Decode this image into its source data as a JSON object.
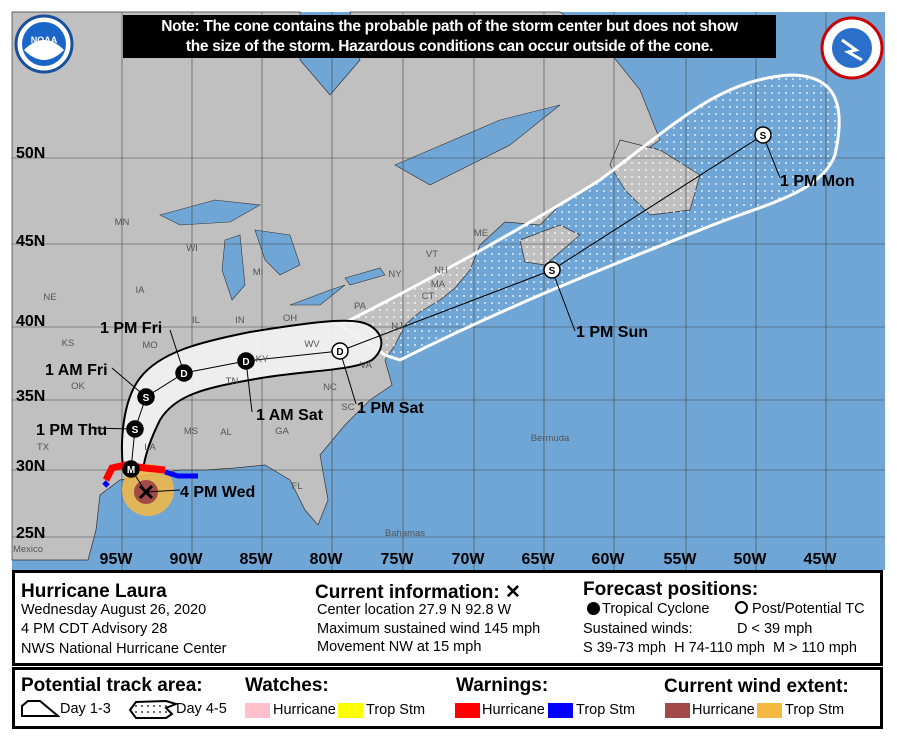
{
  "note": {
    "line1": "Note: The cone contains the probable path of the storm center but does not show",
    "line2": "the size of the storm. Hazardous conditions can occur outside of the cone."
  },
  "logos": {
    "left": "NOAA",
    "right": "NATIONAL WEATHER SERVICE"
  },
  "map": {
    "lat_labels": [
      "50N",
      "45N",
      "40N",
      "35N",
      "30N",
      "25N"
    ],
    "lon_labels": [
      "95W",
      "90W",
      "85W",
      "80W",
      "75W",
      "70W",
      "65W",
      "60W",
      "55W",
      "50W",
      "45W"
    ],
    "region_labels": [
      "MN",
      "WI",
      "MI",
      "IA",
      "NE",
      "IL",
      "IN",
      "OH",
      "PA",
      "NY",
      "VT",
      "NH",
      "ME",
      "MA",
      "CT",
      "NJ",
      "KS",
      "MO",
      "KY",
      "WV",
      "VA",
      "TN",
      "NC",
      "OK",
      "SC",
      "MS",
      "AL",
      "GA",
      "TX",
      "LA",
      "FL",
      "Mexico",
      "Bermuda",
      "Bahamas"
    ],
    "track_labels": [
      "4 PM Wed",
      "1 PM Thu",
      "1 AM Fri",
      "1 PM Fri",
      "1 AM Sat",
      "1 PM Sat",
      "1 PM Sun",
      "1 PM Mon"
    ],
    "track_points": [
      "M",
      "S",
      "S",
      "D",
      "D",
      "D",
      "S",
      "S"
    ],
    "colors": {
      "ocean": "#6fa6d6",
      "land": "#c0c0c0",
      "hurricane_warning": "#ff0000",
      "ts_warning": "#0000ff",
      "hurricane_wind": "#a24a48",
      "ts_wind": "#f5b942"
    }
  },
  "info": {
    "storm_name": "Hurricane Laura",
    "date": "Wednesday August 26, 2020",
    "advisory": "4 PM CDT Advisory 28",
    "center": "NWS National Hurricane Center",
    "current_title": "Current information:",
    "current_icon": "x-mark",
    "location": "Center location 27.9 N 92.8 W",
    "wind": "Maximum sustained wind 145 mph",
    "movement": "Movement NW at 15 mph",
    "forecast_title": "Forecast positions:",
    "tropical": "Tropical Cyclone",
    "post": "Post/Potential TC",
    "sustained": "Sustained winds:",
    "d": "D < 39 mph",
    "shm": "S 39-73 mph  H 74-110 mph  M > 110 mph"
  },
  "legend": {
    "track_title": "Potential track area:",
    "day13": "Day 1-3",
    "day45": "Day 4-5",
    "watches_title": "Watches:",
    "warnings_title": "Warnings:",
    "wind_title": "Current wind extent:",
    "hurricane": "Hurricane",
    "tropstm": "Trop Stm",
    "colors": {
      "watch_hurricane": "#ffc0cb",
      "watch_ts": "#ffff00",
      "warn_hurricane": "#ff0000",
      "warn_ts": "#0000ff",
      "wind_hurricane": "#a24a48",
      "wind_ts": "#f5b942"
    }
  }
}
